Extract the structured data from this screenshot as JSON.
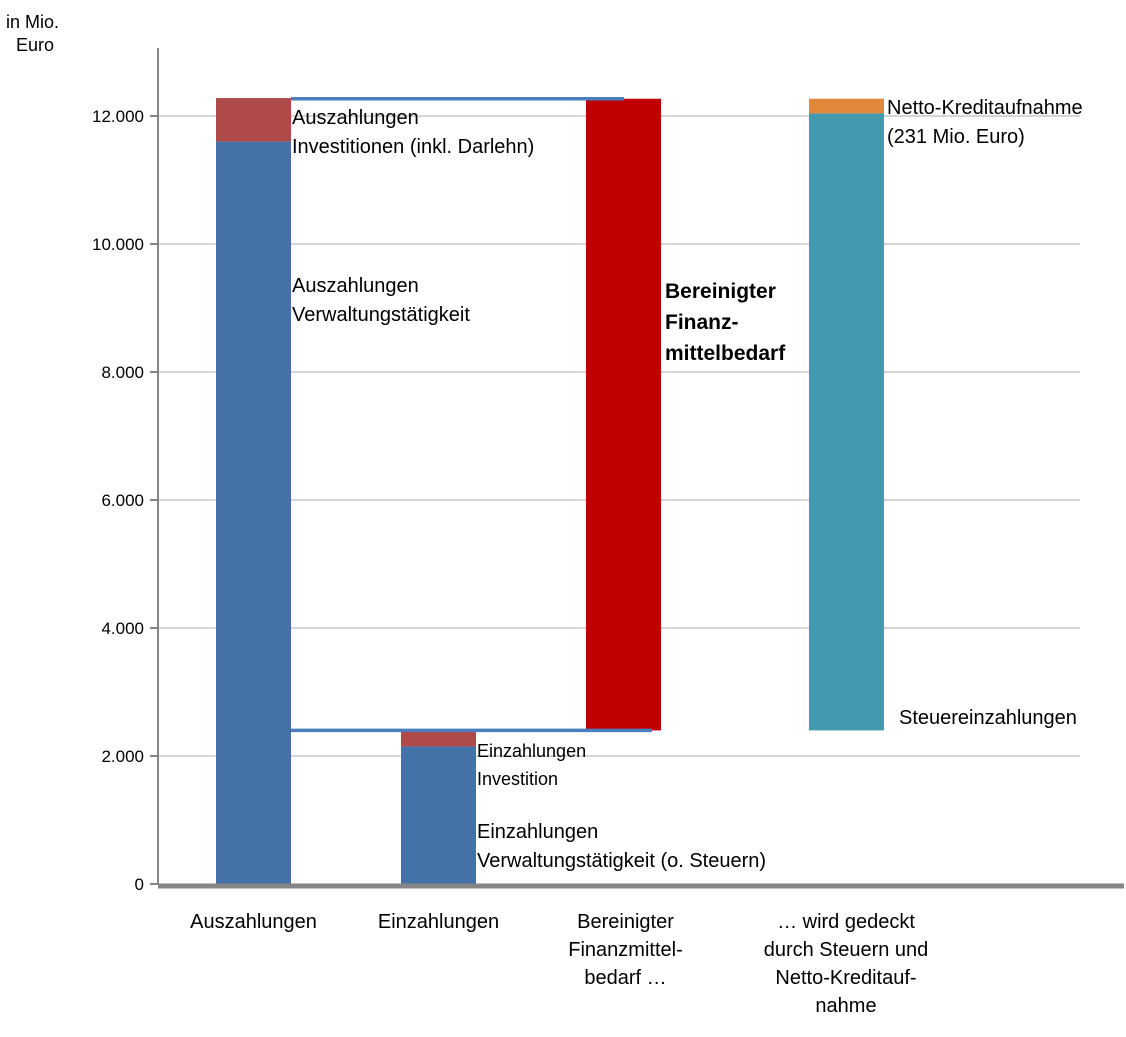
{
  "chart_data": {
    "type": "bar",
    "subtype": "stacked-waterfall",
    "y_unit_label": [
      "in Mio.",
      "Euro"
    ],
    "ylim": [
      0,
      12900
    ],
    "yticks": [
      0,
      2000,
      4000,
      6000,
      8000,
      10000,
      12000
    ],
    "ytick_labels": [
      "0",
      "2.000",
      "4.000",
      "6.000",
      "8.000",
      "10.000",
      "12.000"
    ],
    "grid": true,
    "categories": [
      [
        "Auszahlungen"
      ],
      [
        "Einzahlungen"
      ],
      [
        "Bereinigter",
        "Finanzmittel-",
        "bedarf …"
      ],
      [
        "… wird gedeckt",
        "durch Steuern  und",
        "Netto-Kreditauf-",
        "nahme"
      ]
    ],
    "segments": [
      {
        "cat": 0,
        "from": 0,
        "to": 11600,
        "color": "#4472a8",
        "label": [
          "Auszahlungen",
          "Verwaltungstätigkeit"
        ]
      },
      {
        "cat": 0,
        "from": 11600,
        "to": 12280,
        "color": "#ae4a48",
        "label": [
          "Auszahlungen",
          "Investitionen (inkl. Darlehn)"
        ]
      },
      {
        "cat": 1,
        "from": 0,
        "to": 2150,
        "color": "#4472a8",
        "label": [
          "Einzahlungen",
          "Verwaltungstätigkeit (o. Steuern)"
        ]
      },
      {
        "cat": 1,
        "from": 2150,
        "to": 2400,
        "color": "#ae4a48",
        "label": [
          "Einzahlungen",
          "Investition"
        ]
      },
      {
        "cat": 2,
        "from": 2400,
        "to": 12270,
        "color": "#c00000",
        "label": [
          "Bereinigter",
          "Finanz-",
          "mittelbedarf"
        ]
      },
      {
        "cat": 3,
        "from": 2400,
        "to": 12040,
        "color": "#4299b0",
        "label": [
          "Steuereinzahlungen"
        ]
      },
      {
        "cat": 3,
        "from": 12040,
        "to": 12270,
        "color": "#e0883a",
        "label": [
          "Netto-Kreditaufnahme",
          "(231 Mio. Euro)"
        ]
      }
    ],
    "connectors": [
      {
        "value": 12270,
        "from_cat": 0,
        "to_cat": 2
      },
      {
        "value": 2400,
        "from_cat": 0,
        "to_cat": 2
      }
    ],
    "colors": {
      "grid": "#c8c8c8",
      "axis": "#868686",
      "connector": "#4a7ebf"
    }
  }
}
